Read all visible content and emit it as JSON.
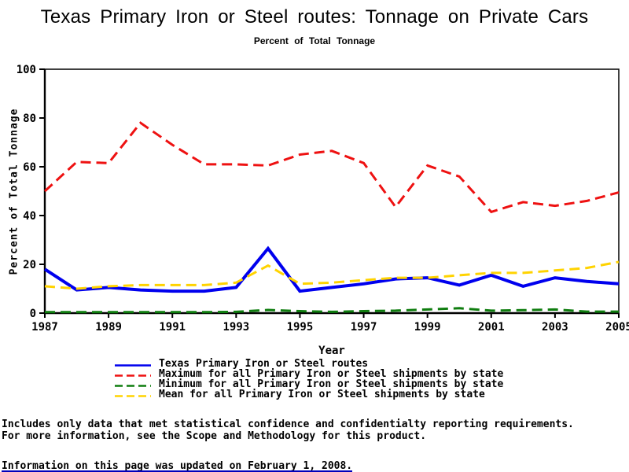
{
  "title": "Texas Primary Iron or Steel routes: Tonnage on Private Cars",
  "subtitle": "Percent of Total Tonnage",
  "chart_data": {
    "type": "line",
    "x": [
      1987,
      1988,
      1989,
      1990,
      1991,
      1992,
      1993,
      1994,
      1995,
      1996,
      1997,
      1998,
      1999,
      2000,
      2001,
      2002,
      2003,
      2004,
      2005
    ],
    "series": [
      {
        "name": "Texas Primary Iron or Steel routes",
        "color": "#0000ee",
        "dash": "solid",
        "width": 4,
        "values": [
          18,
          9.5,
          10.5,
          9.5,
          9,
          9,
          10.5,
          26.5,
          9,
          10.5,
          12,
          14,
          14.5,
          11.5,
          15.5,
          11,
          14.5,
          13,
          12
        ]
      },
      {
        "name": "Maximum for all Primary Iron or Steel shipments by state",
        "color": "#ee1111",
        "dash": "dashed",
        "width": 3,
        "values": [
          50,
          62,
          61.5,
          78,
          69,
          61,
          61,
          60.5,
          65,
          66.5,
          61.5,
          43.5,
          60.5,
          56,
          41.5,
          45.5,
          44,
          46,
          49.5
        ]
      },
      {
        "name": "Minimum for all Primary Iron or Steel shipments by state",
        "color": "#0f7d0f",
        "dash": "dashed",
        "width": 3,
        "values": [
          0.4,
          0.4,
          0.4,
          0.4,
          0.4,
          0.4,
          0.5,
          1.3,
          0.8,
          0.5,
          0.8,
          1,
          1.5,
          2,
          1,
          1.2,
          1.5,
          0.6,
          0.6
        ]
      },
      {
        "name": "Mean for all Primary Iron or Steel shipments by state",
        "color": "#ffd300",
        "dash": "dashed",
        "width": 3,
        "values": [
          11,
          10,
          11,
          11.5,
          11.5,
          11.5,
          12.5,
          19.5,
          12,
          12.5,
          13.5,
          14.5,
          14.5,
          15.5,
          16.5,
          16.5,
          17.5,
          18.5,
          21
        ]
      }
    ],
    "title": "Texas Primary Iron or Steel routes: Tonnage on Private Cars",
    "subtitle": "Percent of Total Tonnage",
    "xlabel": "Year",
    "ylabel": "Percent of Total Tonnage",
    "xlim": [
      1987,
      2005
    ],
    "ylim": [
      0,
      100
    ],
    "xticks": [
      1987,
      1989,
      1991,
      1993,
      1995,
      1997,
      1999,
      2001,
      2003,
      2005
    ],
    "yticks": [
      0,
      20,
      40,
      60,
      80,
      100
    ],
    "grid": false,
    "frame": true,
    "legend_position": "bottom"
  },
  "footer": {
    "note_line1": "Includes only data that met statistical confidence and confidentialty reporting requirements.",
    "note_line2": "For more information, see the Scope and Methodology for this product.",
    "updated": "Information on this page was updated on February 1, 2008."
  }
}
